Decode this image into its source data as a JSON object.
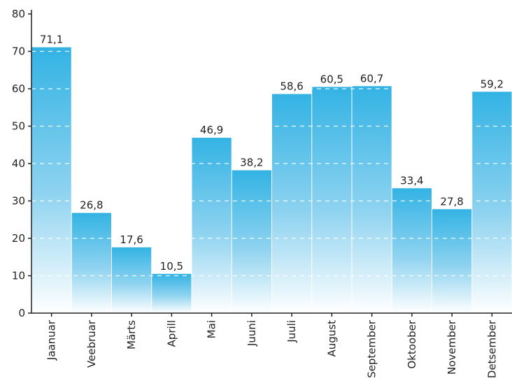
{
  "chart_data": {
    "type": "bar",
    "categories": [
      "Jaanuar",
      "Veebruar",
      "Märts",
      "Aprill",
      "Mai",
      "Juuni",
      "Juuli",
      "August",
      "September",
      "Oktoober",
      "November",
      "Detsember"
    ],
    "values": [
      71.1,
      26.8,
      17.6,
      10.5,
      46.9,
      38.2,
      58.6,
      60.5,
      60.7,
      33.4,
      27.8,
      59.2
    ],
    "data_labels": [
      "71,1",
      "26,8",
      "17,6",
      "10,5",
      "46,9",
      "38,2",
      "58,6",
      "60,5",
      "60,7",
      "33,4",
      "27,8",
      "59,2"
    ],
    "y_ticks": [
      0,
      10,
      20,
      30,
      40,
      50,
      60,
      70,
      80
    ],
    "ylim": [
      0,
      80
    ],
    "grid": true,
    "colors": {
      "bar_top": "#33b3e4",
      "bar_bottom": "#ffffff",
      "axis": "#222222",
      "grid": "#ffffff"
    }
  }
}
